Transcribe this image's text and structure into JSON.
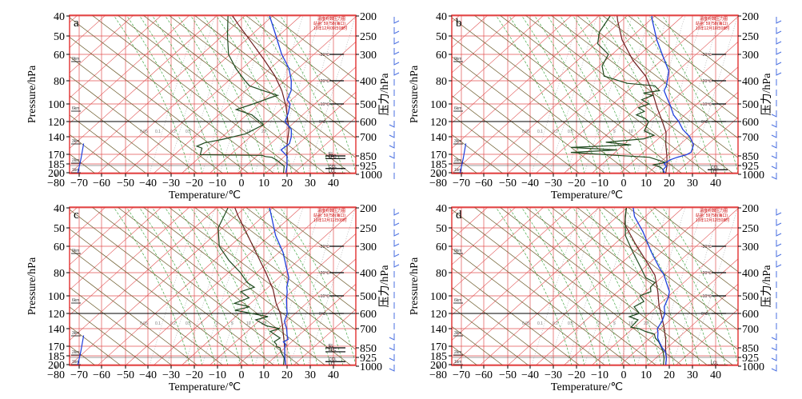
{
  "chart_data": {
    "type": "line",
    "description_units": {
      "x": "°C",
      "y": "hPa"
    },
    "colors": {
      "frame": "#e03030",
      "isotherm": "#e05050",
      "dry_adiabat": "#6b5a2a",
      "moist_adiabat": "#2a9a2a",
      "mixing_ratio": "#8a8a8a",
      "environment": "#1f3fdd",
      "dewpoint": "#1f4a1f",
      "parcel": "#6b1f1f",
      "wind_barb": "#4a6fe0"
    },
    "x_axis": {
      "title": "Temperature/℃",
      "ticks": [
        "−80",
        "−70",
        "−60",
        "−50",
        "−40",
        "−30",
        "−20",
        "−10",
        "0",
        "10",
        "20",
        "30",
        "40"
      ],
      "range": [
        -80,
        40
      ]
    },
    "y_axis_left": {
      "title": "Pressure/hPa",
      "ticks": [
        "40",
        "50",
        "60",
        "80",
        "100",
        "120",
        "140",
        "170",
        "185",
        "200"
      ]
    },
    "y_axis_right": {
      "title": "压力/hPa",
      "ticks": [
        "200",
        "250",
        "300",
        "400",
        "500",
        "600",
        "700",
        "850",
        "925",
        "1000"
      ]
    },
    "legend": {
      "line1": "温度对数压力图",
      "line2": "站名: 59758(海口)",
      "times": [
        "13年12月09日08时",
        "13年12月10日08时",
        "13年12月11日08时",
        "13年12月12日08时"
      ]
    },
    "annotations": {
      "isotherm_labels": [
        "-30℃",
        "-20℃",
        "-10℃",
        "0℃"
      ],
      "height_labels": [
        "9km",
        "6km",
        "3km",
        "2km",
        "1km"
      ],
      "mixing_labels": [
        "0.05",
        "0.1",
        "0.2",
        "0.5",
        "1",
        "2",
        "5",
        "10",
        "20"
      ],
      "level_markers": [
        "EL",
        "LFC",
        "CCL",
        "LCL"
      ]
    },
    "panels": [
      {
        "label": "a",
        "temperature": [
          [
            20,
            1000
          ],
          [
            17,
            925
          ],
          [
            13,
            850
          ],
          [
            8,
            800
          ],
          [
            9,
            750
          ],
          [
            7,
            700
          ],
          [
            4,
            650
          ],
          [
            -2,
            600
          ],
          [
            -4,
            550
          ],
          [
            -7,
            500
          ],
          [
            -10,
            480
          ],
          [
            -12,
            440
          ],
          [
            -16,
            400
          ],
          [
            -22,
            350
          ],
          [
            -31,
            300
          ],
          [
            -41,
            250
          ],
          [
            -52,
            200
          ]
        ],
        "dewpoint": [
          [
            19,
            1000
          ],
          [
            16,
            930
          ],
          [
            10,
            880
          ],
          [
            7,
            860
          ],
          [
            4,
            855
          ],
          [
            2,
            845
          ],
          [
            -25,
            840
          ],
          [
            -27,
            785
          ],
          [
            -30,
            770
          ],
          [
            -28,
            745
          ],
          [
            -22,
            720
          ],
          [
            -14,
            680
          ],
          [
            -10,
            620
          ],
          [
            -19,
            560
          ],
          [
            -28,
            530
          ],
          [
            -23,
            500
          ],
          [
            -18,
            470
          ],
          [
            -16,
            460
          ],
          [
            -24,
            440
          ],
          [
            -32,
            420
          ],
          [
            -36,
            400
          ],
          [
            -45,
            350
          ],
          [
            -54,
            300
          ],
          [
            -62,
            250
          ],
          [
            -70,
            200
          ]
        ],
        "parcel": [
          [
            20,
            1000
          ],
          [
            17,
            925
          ],
          [
            13,
            850
          ],
          [
            8,
            750
          ],
          [
            3,
            650
          ],
          [
            -3,
            570
          ],
          [
            -8,
            510
          ],
          [
            -16,
            440
          ],
          [
            -25,
            380
          ],
          [
            -36,
            320
          ],
          [
            -48,
            270
          ],
          [
            -62,
            220
          ],
          [
            -68,
            200
          ]
        ],
        "low_temp": [
          [
            -70,
            1000
          ],
          [
            -75,
            870
          ],
          [
            -80,
            750
          ]
        ],
        "barbs": [
          "r",
          "r",
          "r",
          "r",
          "r",
          "r",
          "u",
          "u",
          "u",
          "u",
          "l",
          "l",
          "l",
          "l",
          "u",
          "u"
        ],
        "markers": [
          {
            "p": 850,
            "t": "EL"
          },
          {
            "p": 870,
            "t": "LFC"
          },
          {
            "p": 950,
            "t": "CCL"
          },
          {
            "p": 990,
            "t": "LCL"
          }
        ]
      },
      {
        "label": "b",
        "temperature": [
          [
            19,
            1000
          ],
          [
            16,
            960
          ],
          [
            16,
            930
          ],
          [
            14,
            910
          ],
          [
            15,
            880
          ],
          [
            17,
            860
          ],
          [
            20,
            840
          ],
          [
            21,
            820
          ],
          [
            19,
            760
          ],
          [
            14,
            700
          ],
          [
            8,
            650
          ],
          [
            3,
            600
          ],
          [
            -2,
            560
          ],
          [
            -7,
            510
          ],
          [
            -12,
            470
          ],
          [
            -16,
            440
          ],
          [
            -17,
            420
          ],
          [
            -22,
            360
          ],
          [
            -30,
            310
          ],
          [
            -40,
            260
          ],
          [
            -50,
            210
          ],
          [
            -52,
            200
          ]
        ],
        "dewpoint": [
          [
            18,
            1000
          ],
          [
            16,
            960
          ],
          [
            14,
            940
          ],
          [
            10,
            920
          ],
          [
            14,
            900
          ],
          [
            5,
            860
          ],
          [
            -10,
            845
          ],
          [
            -31,
            820
          ],
          [
            -12,
            800
          ],
          [
            -33,
            780
          ],
          [
            -8,
            760
          ],
          [
            -20,
            740
          ],
          [
            -5,
            715
          ],
          [
            -2,
            690
          ],
          [
            -8,
            660
          ],
          [
            -10,
            600
          ],
          [
            -13,
            580
          ],
          [
            -18,
            560
          ],
          [
            -16,
            540
          ],
          [
            -20,
            520
          ],
          [
            -17,
            500
          ],
          [
            -22,
            480
          ],
          [
            -19,
            460
          ],
          [
            -24,
            450
          ],
          [
            -18,
            440
          ],
          [
            -22,
            420
          ],
          [
            -35,
            410
          ],
          [
            -48,
            380
          ],
          [
            -53,
            340
          ],
          [
            -55,
            300
          ],
          [
            -64,
            270
          ],
          [
            -68,
            240
          ],
          [
            -70,
            200
          ]
        ],
        "parcel": [
          [
            19,
            1000
          ],
          [
            16,
            925
          ],
          [
            12,
            850
          ],
          [
            7,
            760
          ],
          [
            2,
            670
          ],
          [
            -5,
            590
          ],
          [
            -12,
            520
          ],
          [
            -20,
            450
          ],
          [
            -30,
            380
          ],
          [
            -42,
            320
          ],
          [
            -55,
            260
          ],
          [
            -65,
            210
          ],
          [
            -67,
            200
          ]
        ],
        "low_temp": [
          [
            -70,
            1000
          ],
          [
            -75,
            870
          ],
          [
            -80,
            750
          ]
        ],
        "barbs": [
          "r",
          "r",
          "r",
          "r",
          "r",
          "r",
          "u",
          "u",
          "u",
          "l",
          "l",
          "l",
          "l",
          "l",
          "l",
          "l"
        ],
        "markers": [
          {
            "p": 960,
            "t": "CCL"
          },
          {
            "p": 995,
            "t": "LCL"
          }
        ]
      },
      {
        "label": "c",
        "temperature": [
          [
            20,
            1000
          ],
          [
            16,
            925
          ],
          [
            12,
            850
          ],
          [
            11,
            820
          ],
          [
            9,
            800
          ],
          [
            10,
            780
          ],
          [
            8,
            750
          ],
          [
            5,
            700
          ],
          [
            1,
            650
          ],
          [
            -1,
            600
          ],
          [
            -4,
            560
          ],
          [
            -7,
            520
          ],
          [
            -10,
            480
          ],
          [
            -12,
            460
          ],
          [
            -15,
            420
          ],
          [
            -20,
            380
          ],
          [
            -28,
            320
          ],
          [
            -38,
            270
          ],
          [
            -52,
            200
          ]
        ],
        "dewpoint": [
          [
            19,
            1000
          ],
          [
            16,
            930
          ],
          [
            12,
            880
          ],
          [
            10,
            850
          ],
          [
            8,
            840
          ],
          [
            7,
            820
          ],
          [
            5,
            800
          ],
          [
            6,
            770
          ],
          [
            -1,
            720
          ],
          [
            2,
            700
          ],
          [
            -5,
            680
          ],
          [
            -12,
            640
          ],
          [
            -8,
            620
          ],
          [
            -25,
            580
          ],
          [
            -20,
            560
          ],
          [
            -28,
            540
          ],
          [
            -24,
            510
          ],
          [
            -30,
            480
          ],
          [
            -26,
            460
          ],
          [
            -31,
            440
          ],
          [
            -38,
            400
          ],
          [
            -48,
            350
          ],
          [
            -58,
            300
          ],
          [
            -66,
            250
          ],
          [
            -70,
            200
          ]
        ],
        "parcel": [
          [
            20,
            1000
          ],
          [
            16,
            925
          ],
          [
            12,
            850
          ],
          [
            7,
            760
          ],
          [
            2,
            680
          ],
          [
            -4,
            600
          ],
          [
            -10,
            540
          ],
          [
            -17,
            470
          ],
          [
            -27,
            400
          ],
          [
            -38,
            330
          ],
          [
            -50,
            270
          ],
          [
            -62,
            220
          ],
          [
            -67,
            200
          ]
        ],
        "low_temp": [
          [
            -70,
            1000
          ],
          [
            -75,
            870
          ],
          [
            -80,
            750
          ]
        ],
        "barbs": [
          "r",
          "r",
          "r",
          "r",
          "r",
          "r",
          "u",
          "u",
          "u",
          "u",
          "u",
          "u",
          "l",
          "l",
          "l",
          "l"
        ],
        "markers": [
          {
            "p": 850,
            "t": "EL"
          },
          {
            "p": 880,
            "t": "LFC"
          },
          {
            "p": 960,
            "t": "CCL"
          },
          {
            "p": 995,
            "t": "LCL"
          }
        ]
      },
      {
        "label": "d",
        "temperature": [
          [
            19,
            1000
          ],
          [
            16,
            930
          ],
          [
            13,
            880
          ],
          [
            10,
            850
          ],
          [
            7,
            810
          ],
          [
            4,
            770
          ],
          [
            2,
            730
          ],
          [
            0,
            700
          ],
          [
            -1,
            650
          ],
          [
            -3,
            600
          ],
          [
            -6,
            560
          ],
          [
            -8,
            510
          ],
          [
            -10,
            480
          ],
          [
            -15,
            440
          ],
          [
            -19,
            410
          ],
          [
            -24,
            380
          ],
          [
            -34,
            320
          ],
          [
            -46,
            260
          ],
          [
            -56,
            220
          ],
          [
            -60,
            200
          ]
        ],
        "dewpoint": [
          [
            18,
            1000
          ],
          [
            15,
            930
          ],
          [
            12,
            880
          ],
          [
            9,
            840
          ],
          [
            6,
            800
          ],
          [
            3,
            770
          ],
          [
            1,
            740
          ],
          [
            -4,
            720
          ],
          [
            -8,
            700
          ],
          [
            -12,
            690
          ],
          [
            -12,
            640
          ],
          [
            -17,
            620
          ],
          [
            -14,
            600
          ],
          [
            -19,
            560
          ],
          [
            -17,
            530
          ],
          [
            -21,
            500
          ],
          [
            -18,
            480
          ],
          [
            -20,
            460
          ],
          [
            -20,
            440
          ],
          [
            -26,
            420
          ],
          [
            -32,
            380
          ],
          [
            -42,
            320
          ],
          [
            -52,
            270
          ],
          [
            -60,
            220
          ],
          [
            -63,
            200
          ]
        ],
        "parcel": [
          [
            19,
            1000
          ],
          [
            16,
            930
          ],
          [
            12,
            860
          ],
          [
            8,
            780
          ],
          [
            3,
            700
          ],
          [
            -3,
            620
          ],
          [
            -9,
            550
          ],
          [
            -15,
            480
          ],
          [
            -23,
            410
          ],
          [
            -33,
            350
          ],
          [
            -45,
            290
          ],
          [
            -57,
            240
          ],
          [
            -63,
            200
          ]
        ],
        "low_temp": [
          [
            -78,
            1000
          ],
          [
            -80,
            950
          ]
        ],
        "barbs": [
          "r",
          "r",
          "r",
          "r",
          "r",
          "r",
          "u",
          "u",
          "u",
          "u",
          "u",
          "u",
          "l",
          "l",
          "l",
          "l"
        ],
        "markers": [
          {
            "p": 990,
            "t": "LCL"
          }
        ]
      }
    ]
  }
}
